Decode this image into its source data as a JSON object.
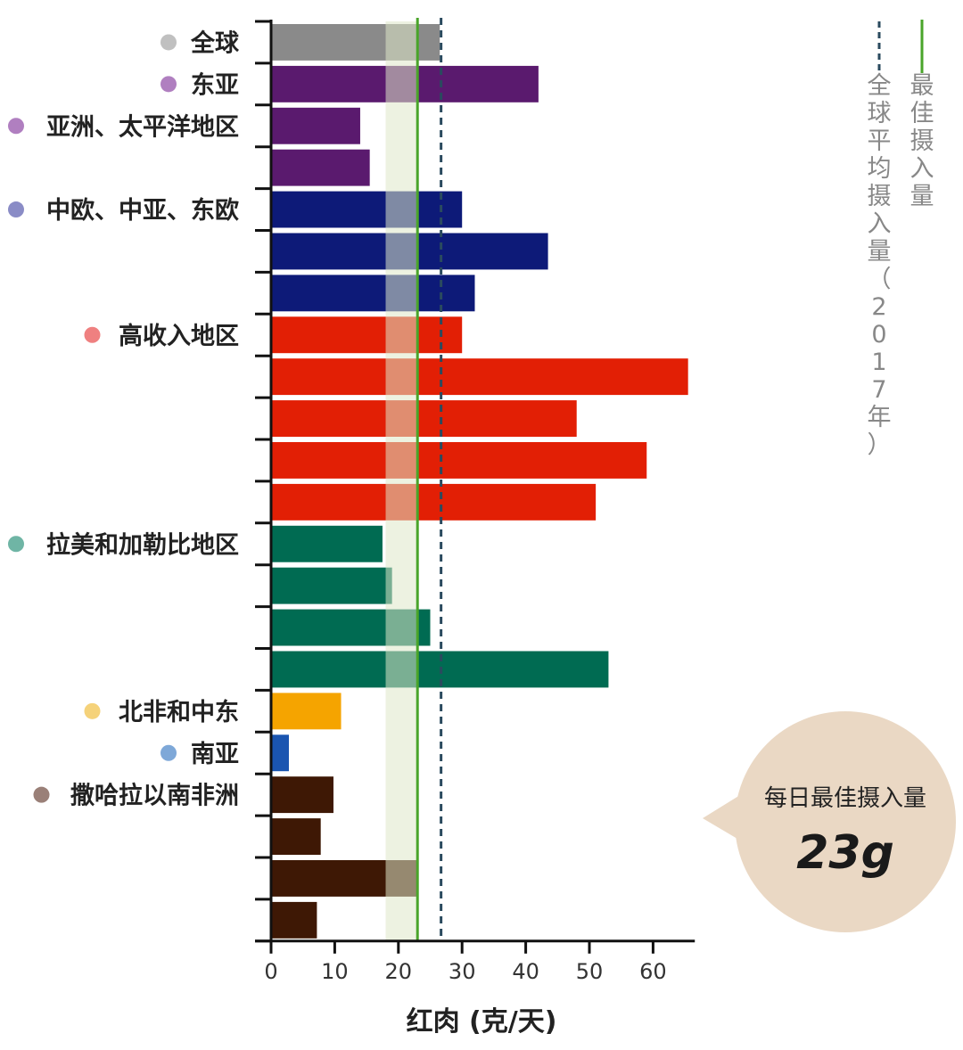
{
  "chart_data": {
    "type": "bar",
    "orientation": "horizontal",
    "xlabel": "红肉 (克/天)",
    "xlim": [
      0,
      66
    ],
    "xticks": [
      0,
      10,
      20,
      30,
      40,
      50,
      60
    ],
    "optimal_intake": 23,
    "optimal_range": [
      18,
      23
    ],
    "global_average_2017": 26.7,
    "groups": [
      {
        "label": "全球",
        "dot_color": "#c0c0c0",
        "bar_color": "#8a8a8a",
        "values": [
          26.5
        ]
      },
      {
        "label": "东亚",
        "dot_color": "#b07fc0",
        "bar_color": "#5a1a6e",
        "values": [
          42
        ]
      },
      {
        "label": "亚洲、太平洋地区",
        "dot_color": "#b07fc0",
        "bar_color": "#5a1a6e",
        "values": [
          14,
          15.5
        ]
      },
      {
        "label": "中欧、中亚、东欧",
        "dot_color": "#8a8cc6",
        "bar_color": "#0d1a78",
        "values": [
          30,
          43.5,
          32
        ]
      },
      {
        "label": "高收入地区",
        "dot_color": "#ef8080",
        "bar_color": "#e21f05",
        "values": [
          30,
          65.5,
          48,
          59,
          51
        ]
      },
      {
        "label": "拉美和加勒比地区",
        "dot_color": "#6fb5a5",
        "bar_color": "#006b52",
        "values": [
          17.5,
          19,
          25,
          53
        ]
      },
      {
        "label": "北非和中东",
        "dot_color": "#f5d27a",
        "bar_color": "#f5a400",
        "values": [
          11
        ]
      },
      {
        "label": "南亚",
        "dot_color": "#7ea8d8",
        "bar_color": "#1a55b0",
        "values": [
          2.8
        ]
      },
      {
        "label": "撒哈拉以南非洲",
        "dot_color": "#9a8078",
        "bar_color": "#3e1805",
        "values": [
          9.8,
          7.8,
          23,
          7.2
        ]
      }
    ]
  },
  "legend": {
    "optimal_label": "最佳摄入量",
    "optimal_color": "#4aa52a",
    "average_label": "全球平均摄入量（2017年）",
    "average_color": "#2a4a5e"
  },
  "callout": {
    "title": "每日最佳摄入量",
    "value": "23g",
    "bg_color": "#ead8c4"
  }
}
